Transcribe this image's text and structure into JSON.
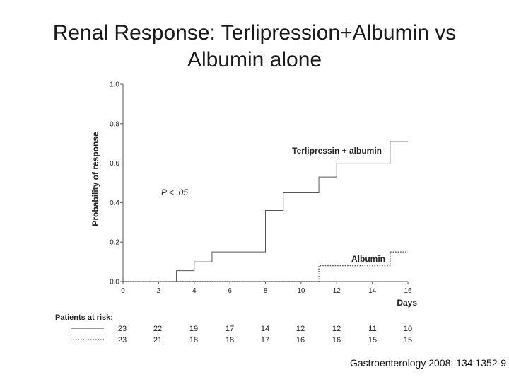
{
  "slide": {
    "title_line1": "Renal Response: Terlipression+Albumin vs",
    "title_line2": "Albumin alone",
    "citation": "Gastroenterology 2008; 134:1352-9"
  },
  "chart_data": {
    "type": "line",
    "step": true,
    "xlabel": "Days",
    "ylabel": "Probability of response",
    "xlim": [
      0,
      16
    ],
    "ylim": [
      0,
      1.0
    ],
    "x_ticks": [
      "0",
      "2",
      "4",
      "6",
      "8",
      "10",
      "12",
      "14",
      "16"
    ],
    "y_ticks": [
      "0.0",
      "0.2",
      "0.4",
      "0.6",
      "0.8",
      "1.0"
    ],
    "annotation": "P < .05",
    "series": [
      {
        "name": "Terlipressin + albumin",
        "line_style": "solid",
        "x": [
          0,
          3,
          4,
          5,
          8,
          9,
          11,
          12,
          15,
          16
        ],
        "y": [
          0.0,
          0.055,
          0.1,
          0.15,
          0.36,
          0.45,
          0.53,
          0.6,
          0.71,
          0.71
        ]
      },
      {
        "name": "Albumin",
        "line_style": "dotted",
        "x": [
          0,
          11,
          15,
          16
        ],
        "y": [
          0.0,
          0.08,
          0.15,
          0.15
        ]
      }
    ],
    "risk_table": {
      "title": "Patients at risk:",
      "rows": [
        {
          "line_style": "solid",
          "values": [
            "23",
            "22",
            "19",
            "17",
            "14",
            "12",
            "12",
            "11",
            "10"
          ]
        },
        {
          "line_style": "dotted",
          "values": [
            "23",
            "21",
            "18",
            "18",
            "17",
            "16",
            "16",
            "15",
            "15"
          ]
        }
      ]
    }
  }
}
